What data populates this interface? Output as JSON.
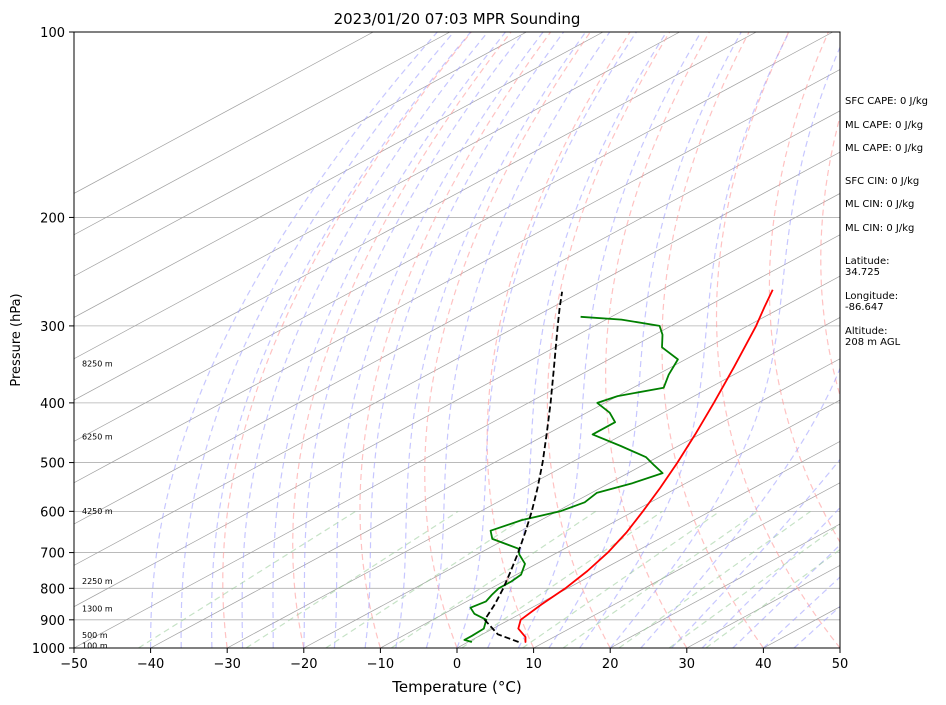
{
  "chart_data": {
    "type": "line",
    "subtype": "skew-t log-p sounding",
    "title": "2023/01/20 07:03 MPR Sounding",
    "xlabel": "Temperature (°C)",
    "ylabel": "Pressure (hPa)",
    "xlim": [
      -50,
      50
    ],
    "ylim": [
      1000,
      100
    ],
    "y_scale": "log",
    "x_ticks": [
      -50,
      -40,
      -30,
      -20,
      -10,
      0,
      10,
      20,
      30,
      40,
      50
    ],
    "x_tick_labels": [
      "−50",
      "−40",
      "−30",
      "−20",
      "−10",
      "0",
      "10",
      "20",
      "30",
      "40",
      "50"
    ],
    "y_ticks": [
      1000,
      900,
      800,
      700,
      600,
      500,
      400,
      300,
      200,
      100
    ],
    "y_tick_labels": [
      "1000",
      "900",
      "800",
      "700",
      "600",
      "500",
      "400",
      "300",
      "200",
      "100"
    ],
    "grid": true,
    "background_lines": {
      "isotherms_color": "#a0a0a0",
      "dry_adiabats_color": "#ff9999",
      "moist_adiabats_color": "#9999ff",
      "mixing_ratio_color": "#99cc99"
    },
    "series": [
      {
        "key": "temperature",
        "color": "#ff0000",
        "points": [
          {
            "p": 965,
            "t": 6.6
          },
          {
            "p": 978,
            "t": 7.5
          },
          {
            "p": 960,
            "t": 6.3
          },
          {
            "p": 930,
            "t": 3.3
          },
          {
            "p": 900,
            "t": 1.5
          },
          {
            "p": 850,
            "t": 0.5
          },
          {
            "p": 800,
            "t": -0.3
          },
          {
            "p": 750,
            "t": -1.6
          },
          {
            "p": 700,
            "t": -3.4
          },
          {
            "p": 650,
            "t": -5.8
          },
          {
            "p": 600,
            "t": -8.8
          },
          {
            "p": 550,
            "t": -12.2
          },
          {
            "p": 500,
            "t": -16.1
          },
          {
            "p": 450,
            "t": -20.6
          },
          {
            "p": 400,
            "t": -25.8
          },
          {
            "p": 350,
            "t": -31.8
          },
          {
            "p": 300,
            "t": -38.9
          },
          {
            "p": 280,
            "t": -42.3
          },
          {
            "p": 262,
            "t": -45.5
          }
        ]
      },
      {
        "key": "dewpoint",
        "color": "#008000",
        "points": [
          {
            "p": 978,
            "t": 0.5
          },
          {
            "p": 970,
            "t": -1.0
          },
          {
            "p": 955,
            "t": -1.0
          },
          {
            "p": 930,
            "t": -1.2
          },
          {
            "p": 900,
            "t": -3.0
          },
          {
            "p": 880,
            "t": -6.0
          },
          {
            "p": 860,
            "t": -8.0
          },
          {
            "p": 840,
            "t": -7.5
          },
          {
            "p": 820,
            "t": -8.3
          },
          {
            "p": 800,
            "t": -9.0
          },
          {
            "p": 780,
            "t": -9.0
          },
          {
            "p": 760,
            "t": -9.4
          },
          {
            "p": 730,
            "t": -11.5
          },
          {
            "p": 705,
            "t": -14.5
          },
          {
            "p": 690,
            "t": -16.0
          },
          {
            "p": 665,
            "t": -21.8
          },
          {
            "p": 645,
            "t": -24.0
          },
          {
            "p": 620,
            "t": -22.5
          },
          {
            "p": 600,
            "t": -19.6
          },
          {
            "p": 580,
            "t": -18.6
          },
          {
            "p": 560,
            "t": -19.3
          },
          {
            "p": 540,
            "t": -17.0
          },
          {
            "p": 520,
            "t": -15.5
          },
          {
            "p": 505,
            "t": -18.5
          },
          {
            "p": 490,
            "t": -21.5
          },
          {
            "p": 470,
            "t": -27.5
          },
          {
            "p": 450,
            "t": -34.0
          },
          {
            "p": 430,
            "t": -34.0
          },
          {
            "p": 415,
            "t": -37.0
          },
          {
            "p": 400,
            "t": -41.0
          },
          {
            "p": 390,
            "t": -40.0
          },
          {
            "p": 378,
            "t": -36.0
          },
          {
            "p": 360,
            "t": -38.5
          },
          {
            "p": 340,
            "t": -41.0
          },
          {
            "p": 325,
            "t": -46.0
          },
          {
            "p": 310,
            "t": -49.0
          },
          {
            "p": 300,
            "t": -51.5
          },
          {
            "p": 293,
            "t": -58.0
          },
          {
            "p": 290,
            "t": -64.0
          }
        ]
      },
      {
        "key": "parcel",
        "color": "#000000",
        "style": "dashed",
        "points": [
          {
            "p": 978,
            "t": 6.6
          },
          {
            "p": 950,
            "t": 2.0
          },
          {
            "p": 900,
            "t": -3.2
          },
          {
            "p": 850,
            "t": -5.6
          },
          {
            "p": 800,
            "t": -8.4
          },
          {
            "p": 750,
            "t": -11.6
          },
          {
            "p": 700,
            "t": -15.1
          },
          {
            "p": 650,
            "t": -19.0
          },
          {
            "p": 600,
            "t": -23.3
          },
          {
            "p": 550,
            "t": -28.2
          },
          {
            "p": 500,
            "t": -33.7
          },
          {
            "p": 450,
            "t": -40.0
          },
          {
            "p": 400,
            "t": -47.1
          },
          {
            "p": 350,
            "t": -55.3
          },
          {
            "p": 300,
            "t": -64.8
          },
          {
            "p": 280,
            "t": -69.0
          },
          {
            "p": 264,
            "t": -72.5
          }
        ]
      }
    ],
    "height_labels": [
      {
        "p": 990,
        "text": "100 m"
      },
      {
        "p": 953,
        "text": "500 m"
      },
      {
        "p": 862,
        "text": "1300 m"
      },
      {
        "p": 778,
        "text": "2250 m"
      },
      {
        "p": 599,
        "text": "4250 m"
      },
      {
        "p": 454,
        "text": "6250 m"
      },
      {
        "p": 345,
        "text": "8250 m"
      }
    ],
    "stats": [
      {
        "label": "SFC CAPE: 0 J/kg"
      },
      {
        "label": "ML CAPE: 0 J/kg"
      },
      {
        "label": "ML CAPE: 0 J/kg"
      },
      {
        "label": "SFC CIN: 0 J/kg"
      },
      {
        "label": "ML CIN: 0 J/kg"
      },
      {
        "label": "ML CIN: 0 J/kg"
      }
    ],
    "location": [
      {
        "label": "Latitude:",
        "value": "34.725"
      },
      {
        "label": "Longitude:",
        "value": "-86.647"
      },
      {
        "label": "Altitude:",
        "value": "208 m AGL"
      }
    ]
  }
}
